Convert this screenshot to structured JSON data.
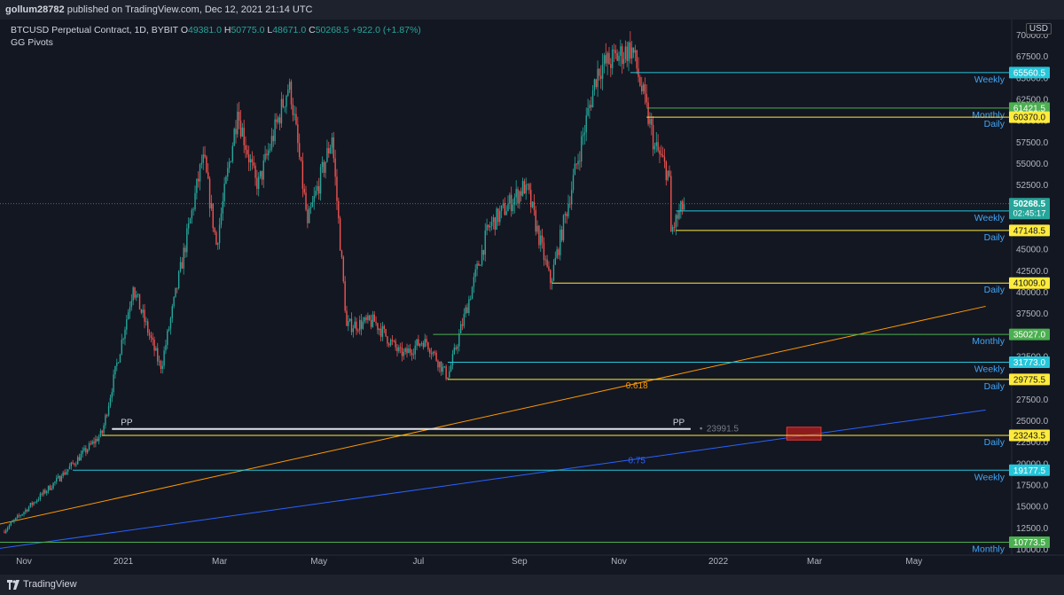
{
  "publish_line": {
    "user": "gollum28782",
    "text": " published on TradingView.com, Dec 12, 2021 21:14 UTC"
  },
  "header": {
    "symbol": "BTCUSD Perpetual Contract, 1D, BYBIT",
    "o_label": "O",
    "o": "49381.0",
    "h_label": "H",
    "h": "50775.0",
    "l_label": "L",
    "l": "48671.0",
    "c_label": "C",
    "c": "50268.5",
    "change": "+922.0 (+1.87%)",
    "indicator": "GG Pivots"
  },
  "currency": "USD",
  "footer": {
    "brand": "TradingView"
  },
  "colors": {
    "background": "#131722",
    "up": "#26a69a",
    "down": "#ef5350",
    "weekly": "#26c6da",
    "monthly": "#4caf50",
    "daily": "#ffeb3b",
    "orange_trend": "#ff9800",
    "blue_trend": "#2962ff"
  },
  "chart_data": {
    "type": "candlestick",
    "x_tick_labels": [
      "Nov",
      "2021",
      "Mar",
      "May",
      "Jul",
      "Sep",
      "Nov",
      "2022",
      "Mar",
      "May"
    ],
    "y_tick_labels": [
      "70000.0",
      "67500.0",
      "65000.0",
      "62500.0",
      "60000.0",
      "57500.0",
      "55000.0",
      "52500.0",
      "50000.0",
      "47500.0",
      "45000.0",
      "42500.0",
      "40000.0",
      "37500.0",
      "35000.0",
      "32500.0",
      "30000.0",
      "27500.0",
      "25000.0",
      "22500.0",
      "20000.0",
      "17500.0",
      "15000.0",
      "12500.0",
      "10000.0"
    ],
    "ylim": [
      10000,
      70000
    ],
    "price_path": [
      {
        "date": "2020-10-20",
        "close": 12000
      },
      {
        "date": "2020-11-25",
        "close": 18500
      },
      {
        "date": "2020-12-20",
        "close": 23500
      },
      {
        "date": "2021-01-08",
        "close": 40500
      },
      {
        "date": "2021-01-25",
        "close": 31000
      },
      {
        "date": "2021-02-20",
        "close": 56000
      },
      {
        "date": "2021-02-28",
        "close": 45500
      },
      {
        "date": "2021-03-13",
        "close": 61000
      },
      {
        "date": "2021-03-25",
        "close": 52000
      },
      {
        "date": "2021-04-14",
        "close": 64500
      },
      {
        "date": "2021-04-25",
        "close": 48000
      },
      {
        "date": "2021-05-10",
        "close": 58000
      },
      {
        "date": "2021-05-19",
        "close": 36000
      },
      {
        "date": "2021-06-05",
        "close": 36500
      },
      {
        "date": "2021-06-22",
        "close": 32500
      },
      {
        "date": "2021-07-06",
        "close": 34500
      },
      {
        "date": "2021-07-20",
        "close": 30000
      },
      {
        "date": "2021-08-14",
        "close": 47500
      },
      {
        "date": "2021-09-06",
        "close": 52500
      },
      {
        "date": "2021-09-21",
        "close": 41000
      },
      {
        "date": "2021-10-20",
        "close": 66000
      },
      {
        "date": "2021-11-10",
        "close": 68500
      },
      {
        "date": "2021-11-24",
        "close": 57000
      },
      {
        "date": "2021-12-03",
        "close": 53500
      },
      {
        "date": "2021-12-04",
        "close": 47000
      },
      {
        "date": "2021-12-12",
        "close": 50268.5
      }
    ],
    "last_price": {
      "value": 50268.5,
      "label": "50268.5",
      "countdown": "02:45:17"
    },
    "pivot_levels": [
      {
        "value": 65560.5,
        "label": "65560.5",
        "kind": "Weekly",
        "color": "#26c6da",
        "start": "2021-11-08"
      },
      {
        "value": 61421.5,
        "label": "61421.5",
        "kind": "Monthly",
        "color": "#4caf50",
        "start": "2021-11-18"
      },
      {
        "value": 60370.0,
        "label": "60370.0",
        "kind": "Daily",
        "color": "#ffeb3b",
        "start": "2021-11-18"
      },
      {
        "value": 49432.0,
        "label": "49432.0",
        "kind": "Weekly",
        "color": "#26c6da",
        "start": "2021-12-06"
      },
      {
        "value": 47148.5,
        "label": "47148.5",
        "kind": "Daily",
        "color": "#ffeb3b",
        "start": "2021-12-06"
      },
      {
        "value": 41009.0,
        "label": "41009.0",
        "kind": "Daily",
        "color": "#ffeb3b",
        "start": "2021-09-21"
      },
      {
        "value": 35027.0,
        "label": "35027.0",
        "kind": "Monthly",
        "color": "#4caf50",
        "start": "2021-07-10"
      },
      {
        "value": 31773.0,
        "label": "31773.0",
        "kind": "Weekly",
        "color": "#26c6da",
        "start": "2021-07-19"
      },
      {
        "value": 29775.5,
        "label": "29775.5",
        "kind": "Daily",
        "color": "#ffeb3b",
        "start": "2021-07-19"
      },
      {
        "value": 23243.5,
        "label": "23243.5",
        "kind": "Daily",
        "color": "#ffeb3b",
        "start": "2020-12-19"
      },
      {
        "value": 19177.5,
        "label": "19177.5",
        "kind": "Weekly",
        "color": "#26c6da",
        "start": "2020-12-01"
      },
      {
        "value": 10773.5,
        "label": "10773.5",
        "kind": "Monthly",
        "color": "#4caf50",
        "start": "2020-10-15"
      }
    ],
    "pp_line": {
      "value": 23991.5,
      "label": "23991.5",
      "left_text": "PP",
      "right_text": "PP",
      "start": "2020-12-25",
      "end": "2021-12-15"
    },
    "trendlines": [
      {
        "label": "0.618",
        "color": "#ff9800",
        "p1": {
          "date": "2020-10-15",
          "value": 12800
        },
        "p2": {
          "date": "2022-06-14",
          "value": 38300
        },
        "label_at": {
          "date": "2021-11-12",
          "value": 28700
        }
      },
      {
        "label": "0.75",
        "color": "#2962ff",
        "p1": {
          "date": "2020-10-15",
          "value": 10000
        },
        "p2": {
          "date": "2022-06-14",
          "value": 26200
        },
        "label_at": {
          "date": "2021-11-12",
          "value": 20000
        }
      }
    ],
    "zone": {
      "date_from": "2022-02-12",
      "date_to": "2022-03-05",
      "low": 22700,
      "high": 24200,
      "color": "#b71c1c"
    }
  }
}
